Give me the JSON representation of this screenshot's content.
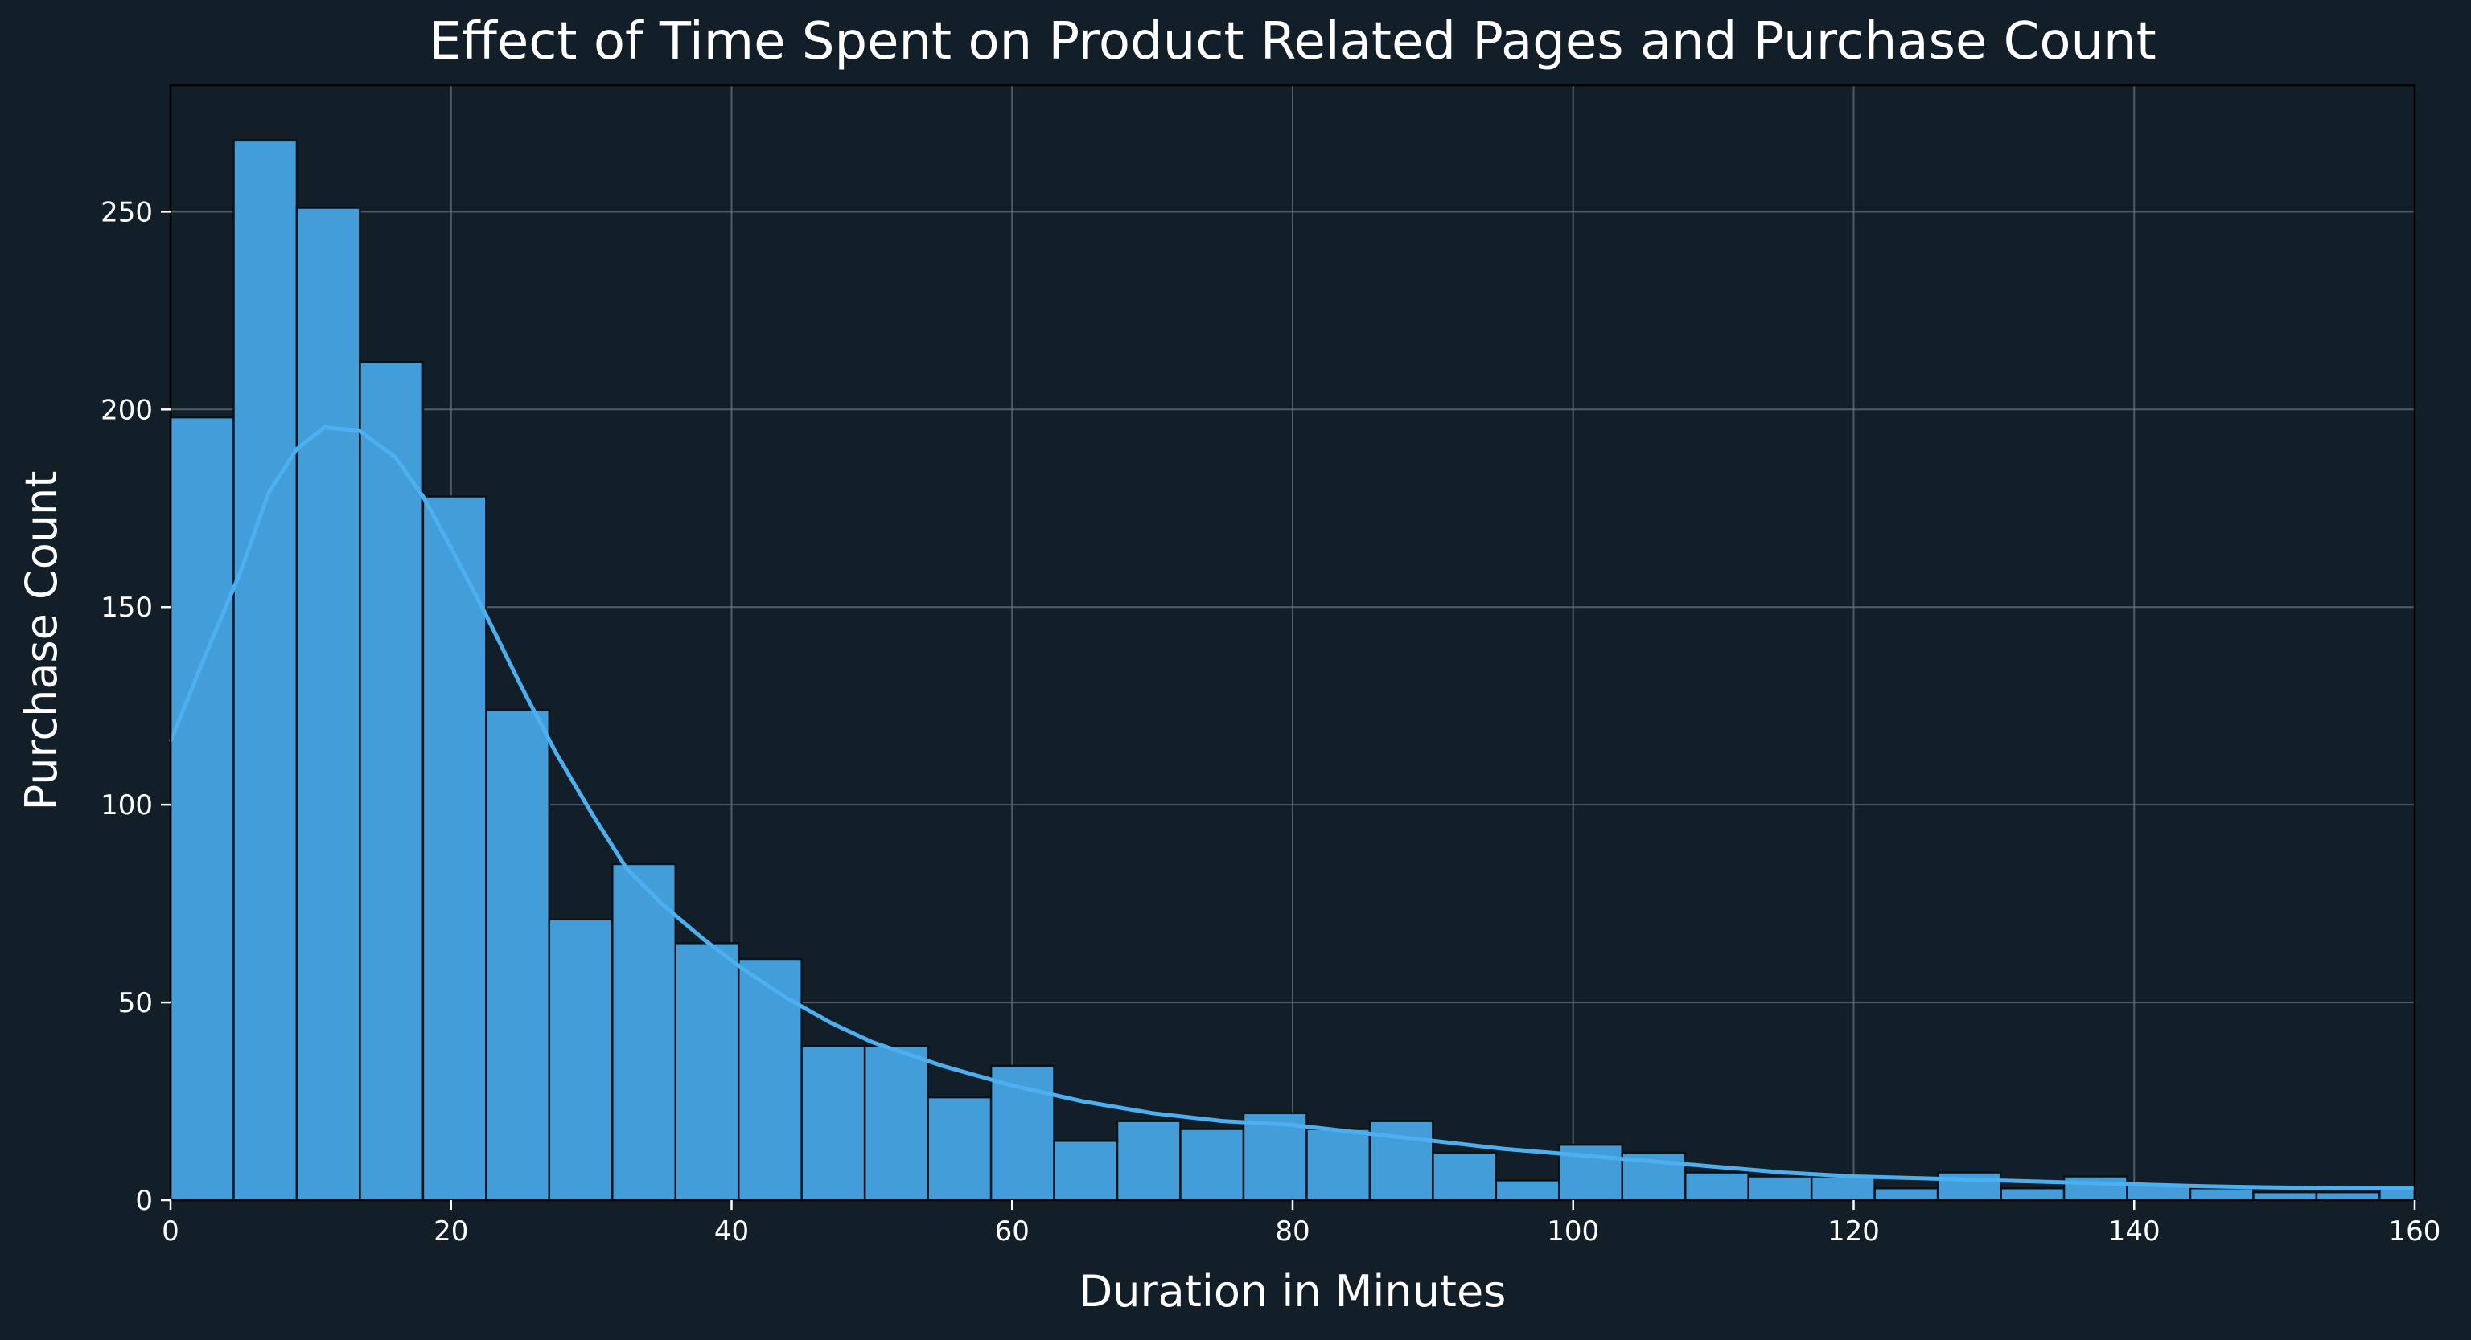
{
  "colors": {
    "background": "#121f28",
    "bar_fill": "#439dd8",
    "bar_edge": "#0a1218",
    "kde_line": "#4cb0f0",
    "grid": "#6b7780",
    "text": "#ffffff"
  },
  "chart_data": {
    "type": "bar",
    "subtype": "histogram-with-kde",
    "title": "Effect of Time Spent on Product Related Pages and Purchase Count",
    "xlabel": "Duration in Minutes",
    "ylabel": "Purchase Count",
    "xlim": [
      0,
      160
    ],
    "ylim": [
      0,
      282
    ],
    "xticks": [
      0,
      20,
      40,
      60,
      80,
      100,
      120,
      140,
      160
    ],
    "yticks": [
      0,
      50,
      100,
      150,
      200,
      250
    ],
    "grid": true,
    "legend": "none",
    "bin_width": 4.5,
    "bins": [
      {
        "x0": 0.0,
        "x1": 4.5,
        "count": 198
      },
      {
        "x0": 4.5,
        "x1": 9.0,
        "count": 268
      },
      {
        "x0": 9.0,
        "x1": 13.5,
        "count": 251
      },
      {
        "x0": 13.5,
        "x1": 18.0,
        "count": 212
      },
      {
        "x0": 18.0,
        "x1": 22.5,
        "count": 178
      },
      {
        "x0": 22.5,
        "x1": 27.0,
        "count": 124
      },
      {
        "x0": 27.0,
        "x1": 31.5,
        "count": 71
      },
      {
        "x0": 31.5,
        "x1": 36.0,
        "count": 85
      },
      {
        "x0": 36.0,
        "x1": 40.5,
        "count": 65
      },
      {
        "x0": 40.5,
        "x1": 45.0,
        "count": 61
      },
      {
        "x0": 45.0,
        "x1": 49.5,
        "count": 39
      },
      {
        "x0": 49.5,
        "x1": 54.0,
        "count": 39
      },
      {
        "x0": 54.0,
        "x1": 58.5,
        "count": 26
      },
      {
        "x0": 58.5,
        "x1": 63.0,
        "count": 34
      },
      {
        "x0": 63.0,
        "x1": 67.5,
        "count": 15
      },
      {
        "x0": 67.5,
        "x1": 72.0,
        "count": 20
      },
      {
        "x0": 72.0,
        "x1": 76.5,
        "count": 18
      },
      {
        "x0": 76.5,
        "x1": 81.0,
        "count": 22
      },
      {
        "x0": 81.0,
        "x1": 85.5,
        "count": 18
      },
      {
        "x0": 85.5,
        "x1": 90.0,
        "count": 20
      },
      {
        "x0": 90.0,
        "x1": 94.5,
        "count": 12
      },
      {
        "x0": 94.5,
        "x1": 99.0,
        "count": 5
      },
      {
        "x0": 99.0,
        "x1": 103.5,
        "count": 14
      },
      {
        "x0": 103.5,
        "x1": 108.0,
        "count": 12
      },
      {
        "x0": 108.0,
        "x1": 112.5,
        "count": 7
      },
      {
        "x0": 112.5,
        "x1": 117.0,
        "count": 6
      },
      {
        "x0": 117.0,
        "x1": 121.5,
        "count": 6
      },
      {
        "x0": 121.5,
        "x1": 126.0,
        "count": 3
      },
      {
        "x0": 126.0,
        "x1": 130.5,
        "count": 7
      },
      {
        "x0": 130.5,
        "x1": 135.0,
        "count": 3
      },
      {
        "x0": 135.0,
        "x1": 139.5,
        "count": 6
      },
      {
        "x0": 139.5,
        "x1": 144.0,
        "count": 4
      },
      {
        "x0": 144.0,
        "x1": 148.5,
        "count": 3
      },
      {
        "x0": 148.5,
        "x1": 153.0,
        "count": 2
      },
      {
        "x0": 153.0,
        "x1": 157.5,
        "count": 2
      },
      {
        "x0": 157.5,
        "x1": 162.0,
        "count": 3
      }
    ],
    "kde": {
      "x": [
        0,
        2.5,
        5,
        7,
        9,
        11,
        13.5,
        16,
        18,
        20,
        22.5,
        25,
        27.5,
        30,
        32.5,
        35,
        38,
        41,
        44,
        47,
        50,
        55,
        60,
        65,
        70,
        75,
        80,
        85,
        90,
        95,
        100,
        105,
        110,
        115,
        120,
        125,
        130,
        135,
        140,
        145,
        150,
        155,
        160
      ],
      "y": [
        116,
        138,
        159,
        179,
        190,
        195.5,
        194.5,
        188,
        178,
        165,
        148,
        130,
        113,
        98,
        84,
        75,
        66,
        58,
        51,
        45,
        40,
        34,
        29,
        25,
        22,
        20,
        19,
        17,
        15,
        13,
        11.5,
        10,
        8.5,
        7,
        6,
        5.5,
        5,
        4.5,
        4,
        3.5,
        3.2,
        3,
        3
      ]
    }
  }
}
